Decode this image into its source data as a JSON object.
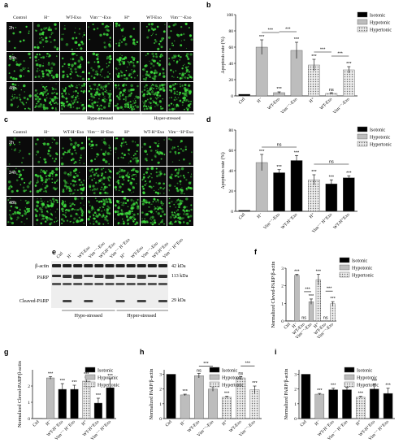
{
  "panel_letters": {
    "a": "a",
    "b": "b",
    "c": "c",
    "d": "d",
    "e": "e",
    "f": "f",
    "g": "g",
    "h": "h",
    "i": "i"
  },
  "micrographs_a": {
    "columns": [
      "Control",
      "H⁻",
      "WT-Exo",
      "Vim⁻⁻-Exo",
      "H⁺",
      "WT-Exo",
      "Vim⁻⁻-Exo"
    ],
    "rows": [
      "2h",
      "24h",
      "48h"
    ],
    "groups": [
      "Hypo-stressed",
      "Hyper-stressed"
    ]
  },
  "micrographs_c": {
    "columns": [
      "Control",
      "H⁻",
      "WT-H⁻Exo",
      "Vim⁻⁻ H⁻Exo",
      "H⁺",
      "WT-H⁺Exo",
      "Vim⁻⁻H⁺Exo"
    ],
    "rows": [
      "2h",
      "24h",
      "48h"
    ]
  },
  "blot_e": {
    "lanes": [
      "Ctrl",
      "H⁻",
      "WT-Exo",
      "Vim⁻⁻-Exo",
      "WT-H⁻Exo",
      "Vim⁻⁻ H⁻Exo",
      "H⁺",
      "WT-Exo",
      "Vim⁻⁻-Exo",
      "WT-H⁺Exo",
      "Vim⁻⁻ H⁺Exo"
    ],
    "bands": [
      "β-actin",
      "PARP",
      "Cleaved-PARP"
    ],
    "markers": [
      "42 kDa",
      "113 kDa",
      "29 kDa"
    ],
    "groups": [
      "Hypo-stressed",
      "Hyper-stressed"
    ]
  },
  "legend": {
    "isotonic": "Isotonic",
    "hypotonic": "Hypotonic",
    "hypertonic": "Hypertonic"
  },
  "colors": {
    "isotonic": "#000000",
    "hypotonic": "#bdbdbd",
    "hypertonic": "#d9d9d9",
    "micro_bg": "#0a0a0a",
    "micro_cell": "#3ddc3d"
  },
  "chart_data": [
    {
      "panel": "b",
      "type": "bar",
      "ylabel": "Apoptosis rate (%)",
      "ylim": [
        0,
        100
      ],
      "yticks": [
        0,
        20,
        40,
        60,
        80,
        100
      ],
      "categories": [
        "Ctrl",
        "H⁻",
        "WT-Exo",
        "Vim⁻⁻-Exo",
        "H⁺",
        "WT-Exo",
        "Vim⁻⁻-Exo"
      ],
      "values": [
        2,
        60,
        4,
        56,
        38,
        3,
        32
      ],
      "errors": [
        0,
        9,
        1,
        10,
        7,
        1,
        4
      ],
      "groups": [
        "iso",
        "hypo",
        "hypo",
        "hypo",
        "hyper",
        "hyper",
        "hyper"
      ],
      "sig": [
        "",
        "***",
        "***",
        "***",
        "***",
        "ns",
        "***"
      ],
      "brackets": [
        {
          "from": 1,
          "to": 2,
          "label": "***"
        },
        {
          "from": 2,
          "to": 3,
          "label": "***"
        },
        {
          "from": 4,
          "to": 5,
          "label": "***"
        },
        {
          "from": 5,
          "to": 6,
          "label": "***"
        }
      ]
    },
    {
      "panel": "d",
      "type": "bar",
      "ylabel": "Apoptosis rate (%)",
      "ylim": [
        0,
        80
      ],
      "yticks": [
        0,
        20,
        40,
        60,
        80
      ],
      "categories": [
        "Ctrl",
        "H⁻",
        "Vim⁻⁻-Exo",
        "WT-H⁻Exo",
        "H⁺",
        "Vim⁻⁻ H⁺Exo",
        "WT-H⁺Exo"
      ],
      "values": [
        1,
        48,
        38,
        50,
        31,
        27,
        33
      ],
      "errors": [
        0,
        8,
        3,
        5,
        5,
        4,
        2
      ],
      "groups": [
        "iso",
        "hypo",
        "iso",
        "iso",
        "hyper",
        "iso",
        "iso"
      ],
      "sig": [
        "",
        "***",
        "***",
        "***",
        "***",
        "***",
        "***"
      ],
      "brackets": [
        {
          "from": 1,
          "to": 3,
          "label": "ns"
        },
        {
          "from": 4,
          "to": 6,
          "label": "ns"
        }
      ]
    },
    {
      "panel": "f",
      "type": "bar",
      "ylabel": "Normalized Cleved-PARP/β-actin",
      "ylim": [
        0,
        3
      ],
      "yticks": [
        0,
        1,
        2,
        3
      ],
      "categories": [
        "Ctrl",
        "H⁻",
        "WT-Exo",
        "Vim⁻⁻-Exo",
        "H⁺",
        "WT-Exo",
        "Vim⁻⁻-Exo"
      ],
      "values": [
        0.02,
        2.6,
        0.02,
        1.1,
        2.35,
        0.02,
        0.98
      ],
      "errors": [
        0,
        0.05,
        0,
        0.15,
        0.3,
        0,
        0.12
      ],
      "groups": [
        "iso",
        "hypo",
        "hypo",
        "hypo",
        "hyper",
        "hyper",
        "hyper"
      ],
      "sig": [
        "",
        "***",
        "ns",
        "***",
        "***",
        "ns",
        "***"
      ],
      "brackets": [
        {
          "from": 2,
          "to": 3,
          "label": "***"
        },
        {
          "from": 5,
          "to": 6,
          "label": "***"
        }
      ]
    },
    {
      "panel": "g",
      "type": "bar",
      "ylabel": "Normalized Cleved-PARP/β-actin",
      "ylim": [
        0,
        3
      ],
      "yticks": [
        0,
        1,
        2
      ],
      "categories": [
        "Ctrl",
        "H⁻",
        "WT-H⁻Exo",
        "Vim⁻⁻ H⁻Exo",
        "H⁺",
        "WT-H⁺Exo",
        "Vim⁻⁻ H⁺Exo"
      ],
      "values": [
        0.02,
        2.5,
        1.8,
        1.8,
        2.3,
        0.95,
        1.9
      ],
      "errors": [
        0,
        0.08,
        0.35,
        0.25,
        0.25,
        0.3,
        0.55
      ],
      "groups": [
        "iso",
        "hypo",
        "iso",
        "iso",
        "hyper",
        "iso",
        "iso"
      ],
      "sig": [
        "",
        "***",
        "***",
        "***",
        "***",
        "***",
        "***"
      ],
      "brackets": []
    },
    {
      "panel": "h",
      "type": "bar",
      "ylabel": "Normalized PARP/β-actin",
      "ylim": [
        0,
        3.3
      ],
      "yticks": [
        0,
        1,
        2,
        3
      ],
      "categories": [
        "Ctrl",
        "H⁻",
        "WT-Exo",
        "Vim⁻⁻-Exo",
        "H⁺",
        "WT-Exo",
        "Vim⁻⁻-Exo"
      ],
      "values": [
        3.0,
        1.6,
        2.9,
        2.0,
        1.45,
        2.75,
        1.95
      ],
      "errors": [
        0,
        0.05,
        0.15,
        0.15,
        0.05,
        0.1,
        0.25
      ],
      "groups": [
        "iso",
        "hypo",
        "hypo",
        "hypo",
        "hyper",
        "hyper",
        "hyper"
      ],
      "sig": [
        "",
        "***",
        "ns",
        "***",
        "***",
        "ns",
        "***"
      ],
      "brackets": [
        {
          "from": 2,
          "to": 3,
          "label": "***"
        },
        {
          "from": 5,
          "to": 6,
          "label": "***"
        }
      ]
    },
    {
      "panel": "i",
      "type": "bar",
      "ylabel": "Normalized PARP/β-actin",
      "ylim": [
        0,
        3.3
      ],
      "yticks": [
        0,
        1,
        2,
        3
      ],
      "categories": [
        "Ctrl",
        "H⁻",
        "WT-H⁻Exo",
        "Vim⁻⁻ H⁻Exo",
        "H⁺",
        "WT-H⁺Exo",
        "Vim⁻⁻ H⁺Exo"
      ],
      "values": [
        3.0,
        1.65,
        1.95,
        1.95,
        1.45,
        2.0,
        1.7
      ],
      "errors": [
        0,
        0.05,
        0.1,
        0.15,
        0.05,
        0.35,
        0.35
      ],
      "groups": [
        "iso",
        "hypo",
        "iso",
        "iso",
        "hyper",
        "iso",
        "iso"
      ],
      "sig": [
        "",
        "***",
        "***",
        "***",
        "***",
        "***",
        "***"
      ],
      "brackets": []
    }
  ]
}
